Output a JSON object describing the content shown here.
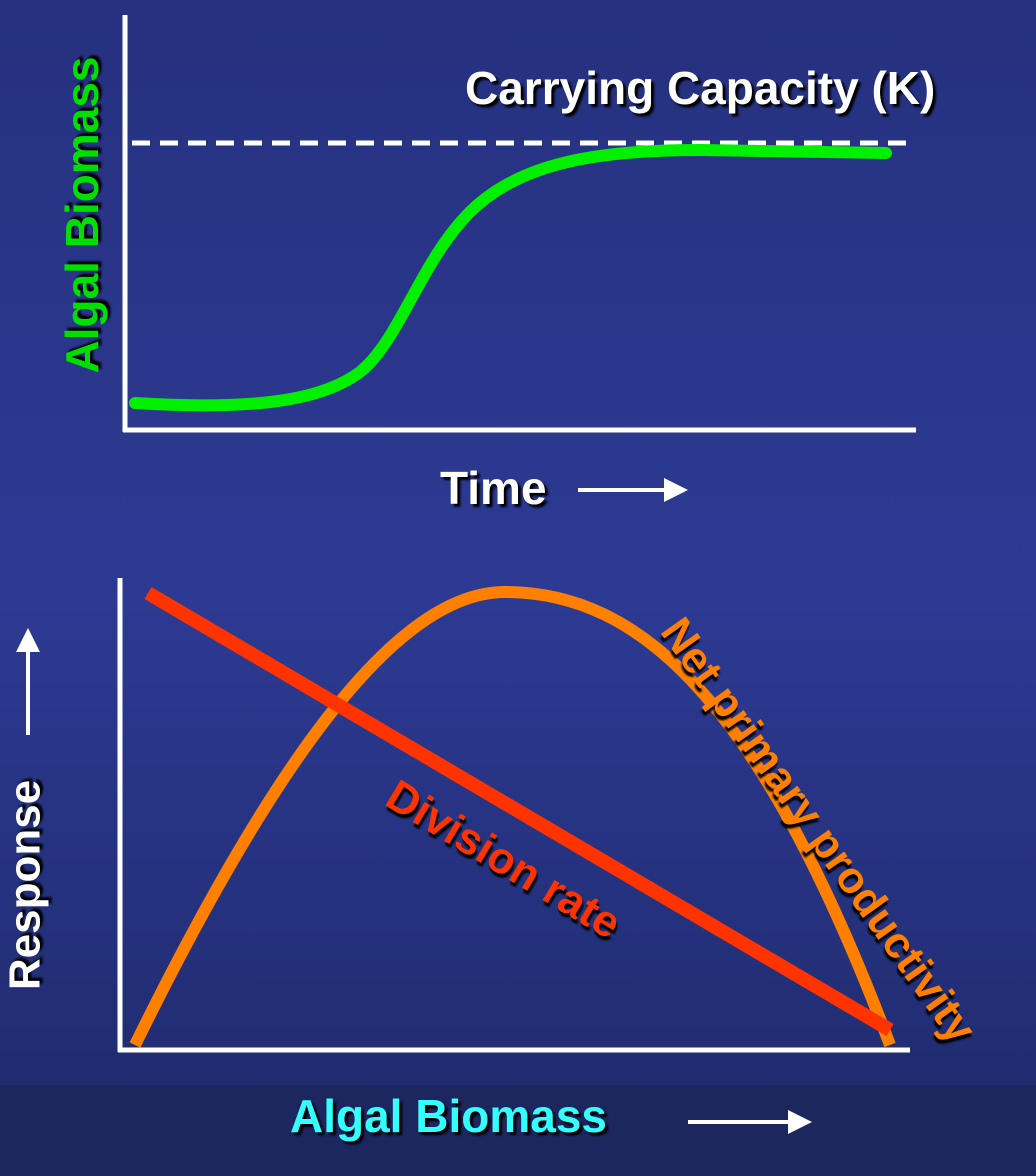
{
  "top_chart": {
    "y_label": "Algal Biomass",
    "annotation": "Carrying Capacity (K)",
    "x_label": "Time"
  },
  "bottom_chart": {
    "y_label": "Response",
    "x_label": "Algal Biomass",
    "curve_labels": [
      "Net primary productivity",
      "Division rate"
    ]
  }
}
